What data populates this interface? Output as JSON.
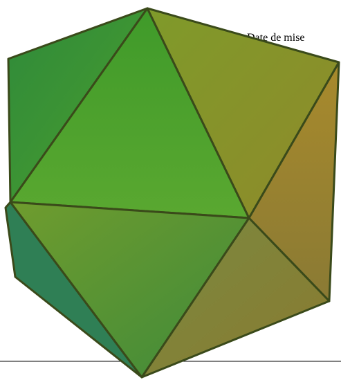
{
  "text": "Date de mise"
}
